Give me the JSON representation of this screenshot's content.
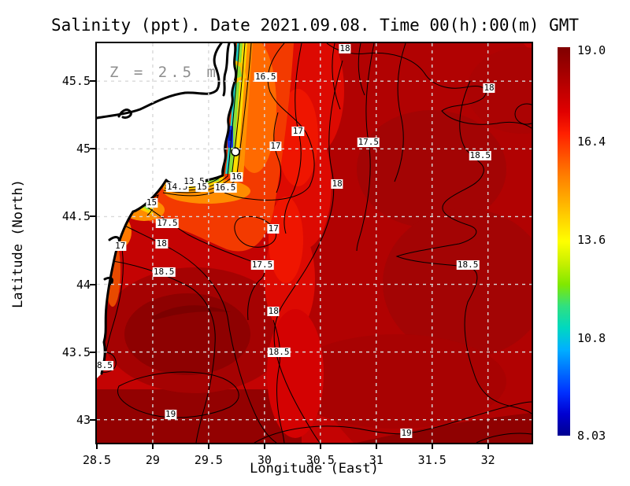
{
  "title": "Salinity (ppt). Date 2021.09.08. Time 00(h):00(m) GMT",
  "chart_data": {
    "type": "heatmap",
    "variable": "Salinity (ppt)",
    "date": "2021.09.08",
    "time": "00(h):00(m) GMT",
    "annotation": "Z = 2.5 m",
    "xlabel": "Longitude (East)",
    "ylabel": "Latitude (North)",
    "x_range": [
      28.5,
      32.39
    ],
    "y_range": [
      42.83,
      45.78
    ],
    "x_ticks": [
      {
        "label": "28.5",
        "value": 28.5
      },
      {
        "label": "29",
        "value": 29
      },
      {
        "label": "29.5",
        "value": 29.5
      },
      {
        "label": "30",
        "value": 30
      },
      {
        "label": "30.5",
        "value": 30.5
      },
      {
        "label": "31",
        "value": 31
      },
      {
        "label": "31.5",
        "value": 31.5
      },
      {
        "label": "32",
        "value": 32
      }
    ],
    "y_ticks": [
      {
        "label": "45.5",
        "value": 45.5
      },
      {
        "label": "45",
        "value": 45
      },
      {
        "label": "44.5",
        "value": 44.5
      },
      {
        "label": "44",
        "value": 44
      },
      {
        "label": "43.5",
        "value": 43.5
      },
      {
        "label": "43",
        "value": 43
      }
    ],
    "grid": true,
    "grid_color": "#d9d9d9",
    "land_color": "#ffffff",
    "coastline_color": "#000000",
    "colorbar": {
      "min": 8.03,
      "max": 19.0,
      "ticks": [
        {
          "label": "19.0",
          "value": 19.0
        },
        {
          "label": "16.4",
          "value": 16.4
        },
        {
          "label": "13.6",
          "value": 13.6
        },
        {
          "label": "10.8",
          "value": 10.8
        },
        {
          "label": "8.03",
          "value": 8.03
        }
      ],
      "colors_top_to_bottom": [
        "#800000",
        "#9e0000",
        "#c00000",
        "#e00000",
        "#ff2000",
        "#ff5000",
        "#ff8000",
        "#ffaa00",
        "#ffd500",
        "#ffff00",
        "#c8f000",
        "#80e800",
        "#30e080",
        "#00d8c0",
        "#00b0ff",
        "#0070ff",
        "#0030ff",
        "#0000d0",
        "#000090"
      ]
    },
    "contour_labels": [
      {
        "value": "18",
        "lon": 30.72,
        "lat": 45.74
      },
      {
        "value": "16.5",
        "lon": 30.01,
        "lat": 45.53
      },
      {
        "value": "18",
        "lon": 32.01,
        "lat": 45.45
      },
      {
        "value": "17",
        "lon": 30.3,
        "lat": 45.13
      },
      {
        "value": "17",
        "lon": 30.1,
        "lat": 45.02
      },
      {
        "value": "17.5",
        "lon": 30.93,
        "lat": 45.05
      },
      {
        "value": "18.5",
        "lon": 31.93,
        "lat": 44.95
      },
      {
        "value": "18",
        "lon": 30.65,
        "lat": 44.74
      },
      {
        "value": "16",
        "lon": 29.75,
        "lat": 44.79
      },
      {
        "value": "14.5",
        "lon": 29.22,
        "lat": 44.72
      },
      {
        "value": "13.5",
        "lon": 29.37,
        "lat": 44.76
      },
      {
        "value": "15",
        "lon": 29.44,
        "lat": 44.72
      },
      {
        "value": "16.5",
        "lon": 29.65,
        "lat": 44.71
      },
      {
        "value": "15",
        "lon": 28.99,
        "lat": 44.6
      },
      {
        "value": "17.5",
        "lon": 29.13,
        "lat": 44.45
      },
      {
        "value": "17",
        "lon": 28.71,
        "lat": 44.28
      },
      {
        "value": "18",
        "lon": 29.08,
        "lat": 44.3
      },
      {
        "value": "18.5",
        "lon": 29.1,
        "lat": 44.09
      },
      {
        "value": "17",
        "lon": 30.08,
        "lat": 44.41
      },
      {
        "value": "17.5",
        "lon": 29.98,
        "lat": 44.14
      },
      {
        "value": "18",
        "lon": 30.08,
        "lat": 43.8
      },
      {
        "value": "18.5",
        "lon": 30.13,
        "lat": 43.5
      },
      {
        "value": "8.5",
        "lon": 28.57,
        "lat": 43.4
      },
      {
        "value": "19",
        "lon": 29.16,
        "lat": 43.04
      },
      {
        "value": "19",
        "lon": 31.27,
        "lat": 42.9
      },
      {
        "value": "18.5",
        "lon": 31.82,
        "lat": 44.14
      }
    ]
  }
}
